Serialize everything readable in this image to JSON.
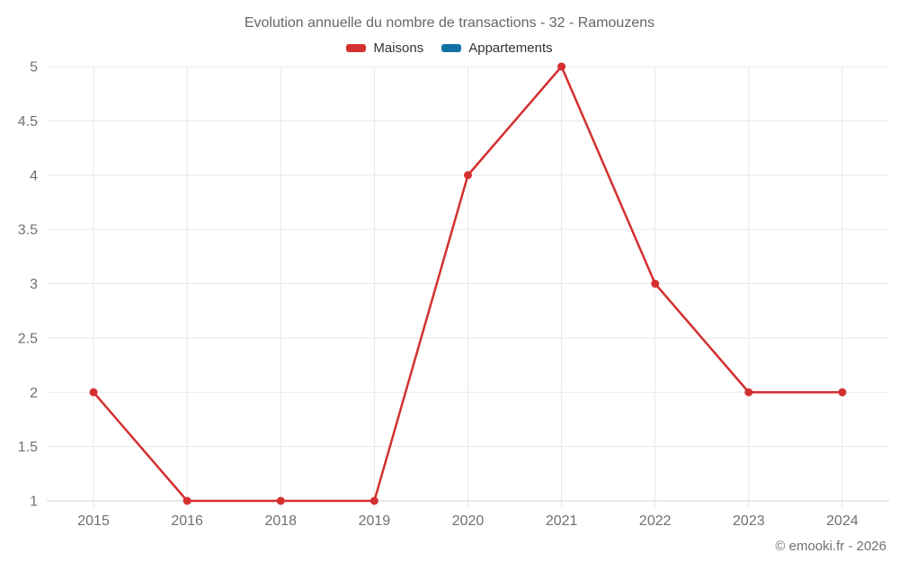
{
  "title": "Evolution annuelle du nombre de transactions - 32 - Ramouzens",
  "footer": {
    "credit": "© emooki.fr - 2026"
  },
  "colors": {
    "maisons": "#d3302f",
    "appartements": "#1272a5",
    "grid": "#e8e8e8",
    "axis_line": "#cfcfcf",
    "axis_label": "#707070",
    "title_text": "#666666",
    "legend_text": "#333333",
    "footer_text": "#707070",
    "background": "#ffffff"
  },
  "chart_data": {
    "type": "line",
    "title": "Evolution annuelle du nombre de transactions - 32 - Ramouzens",
    "categories": [
      "2015",
      "2016",
      "2018",
      "2019",
      "2020",
      "2021",
      "2022",
      "2023",
      "2024"
    ],
    "series": [
      {
        "name": "Maisons",
        "color": "#d3302f",
        "values": [
          2,
          1,
          1,
          1,
          4,
          5,
          3,
          2,
          2
        ]
      },
      {
        "name": "Appartements",
        "color": "#1272a5",
        "values": []
      }
    ],
    "ylim": [
      1,
      5
    ],
    "yticks": [
      1,
      1.5,
      2,
      2.5,
      3,
      3.5,
      4,
      4.5,
      5
    ],
    "xlabel": "",
    "ylabel": "",
    "grid": true,
    "legend_position": "top",
    "marker_radius": 4.5,
    "line_width": 2.5
  }
}
